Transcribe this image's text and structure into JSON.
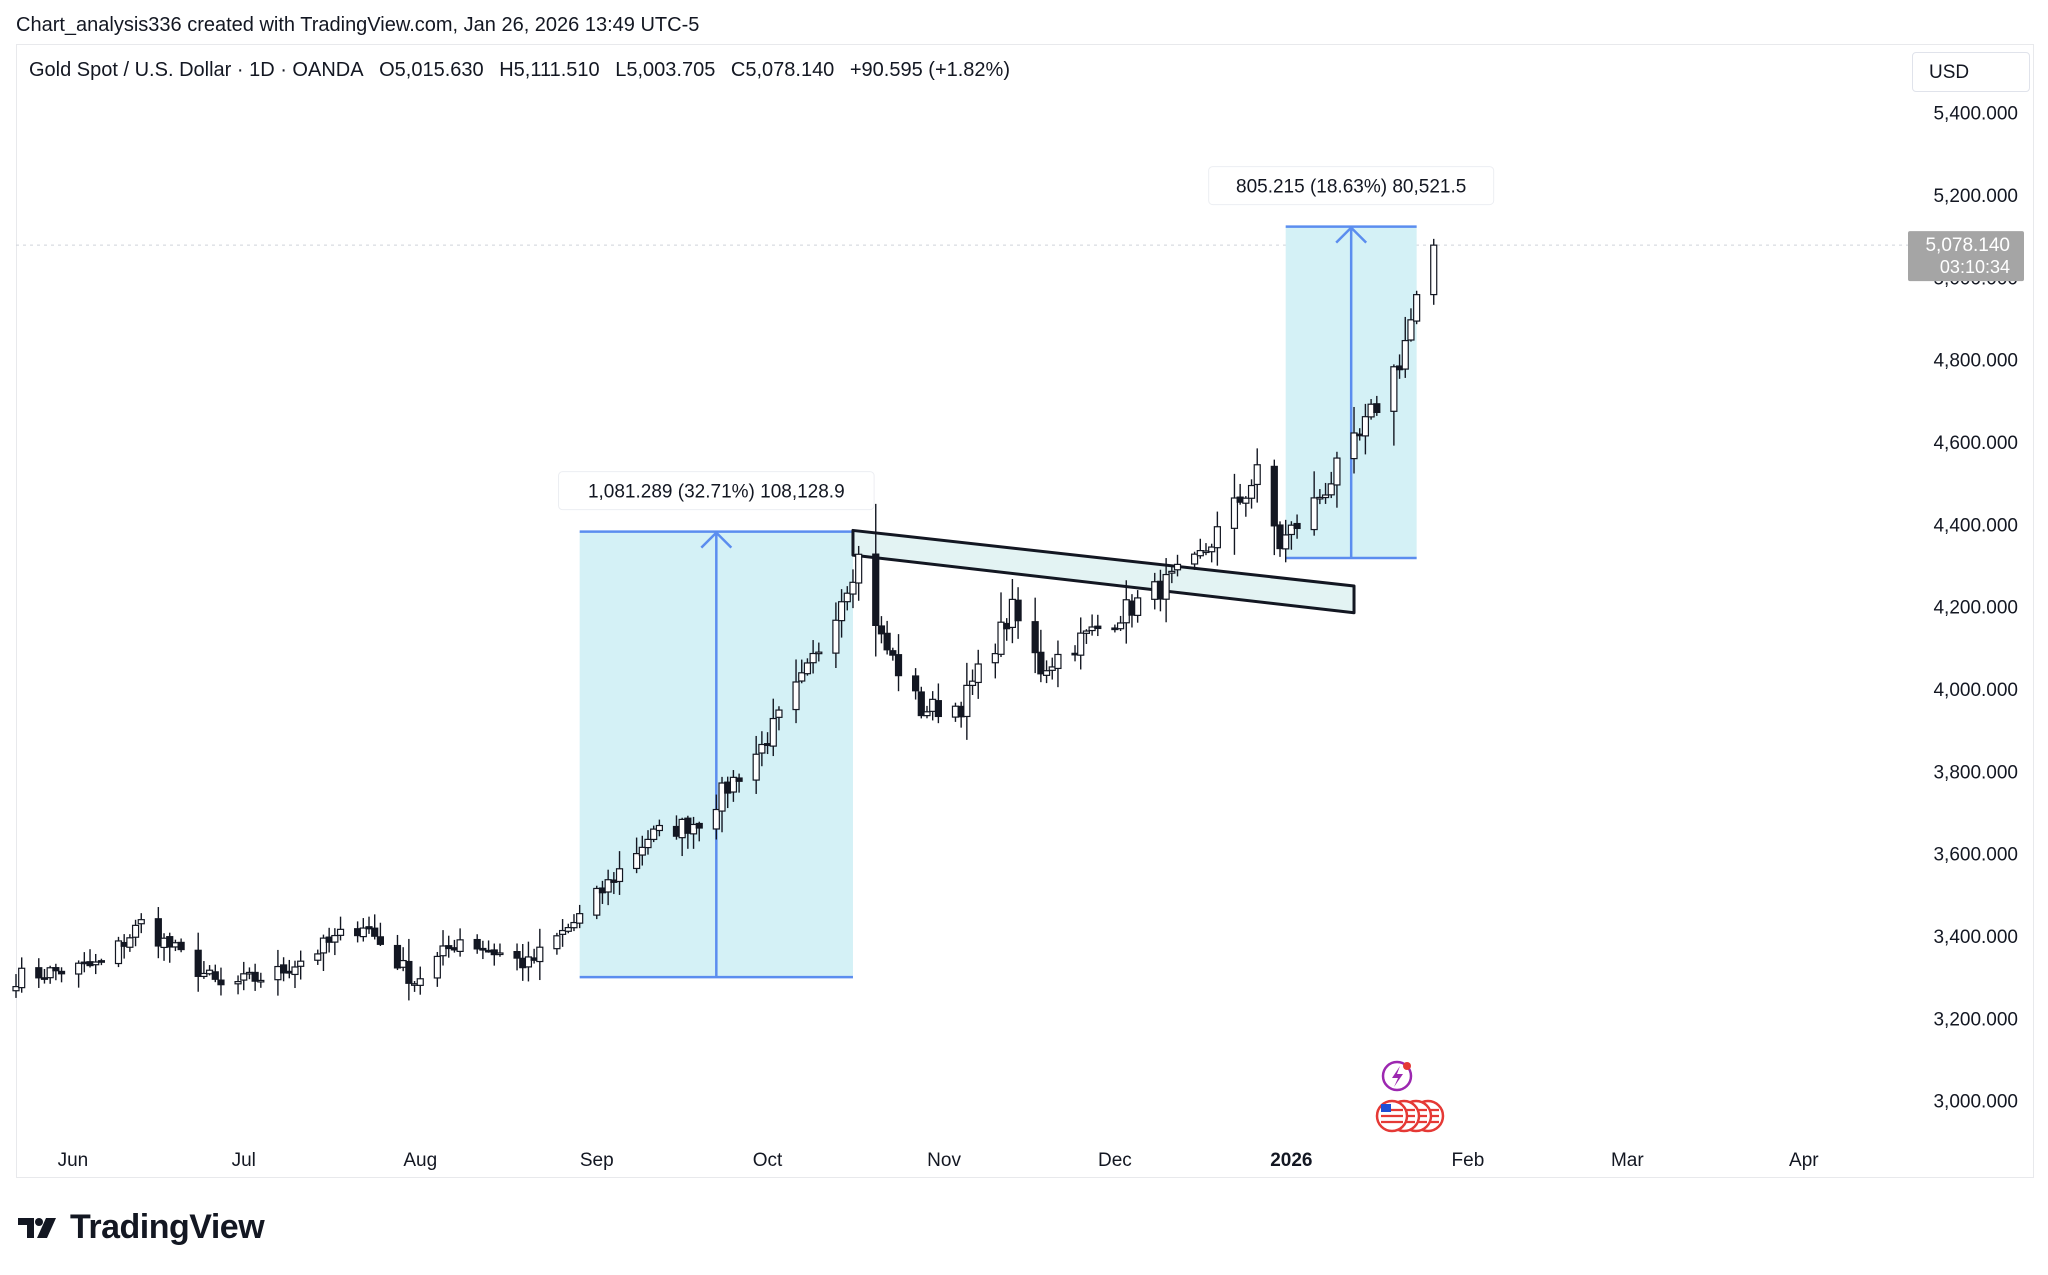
{
  "attribution": "Chart_analysis336 created with TradingView.com, Jan 26, 2026 13:49 UTC-5",
  "legend": {
    "symbol": "Gold Spot / U.S. Dollar · 1D · OANDA",
    "open": "O5,015.630",
    "high": "H5,111.510",
    "low": "L5,003.705",
    "close": "C5,078.140",
    "change": "+90.595 (+1.82%)"
  },
  "currency": "USD",
  "brand": "TradingView",
  "colors": {
    "candle_up_body": "#ffffff",
    "candle_down_body": "#131722",
    "measure_fill": "#d4f1f6",
    "measure_line": "#5b8def",
    "channel_fill": "#e3f3f3",
    "price_label_bg": "#a5a5a5"
  },
  "chart_data": {
    "type": "candlestick",
    "ylim": [
      2880,
      5450
    ],
    "y_ticks": [
      3000,
      3200,
      3400,
      3600,
      3800,
      4000,
      4200,
      4400,
      4600,
      4800,
      5000,
      5200,
      5400
    ],
    "y_tick_labels": [
      "3,000.000",
      "3,200.000",
      "3,400.000",
      "3,600.000",
      "3,800.000",
      "4,000.000",
      "4,200.000",
      "4,400.000",
      "4,600.000",
      "4,800.000",
      "5,000.000",
      "5,200.000",
      "5,400.000"
    ],
    "x_range": [
      "2025-05-22",
      "2026-04-20"
    ],
    "x_ticks": [
      {
        "date": "2025-06-01",
        "label": "Jun",
        "bold": false
      },
      {
        "date": "2025-07-01",
        "label": "Jul",
        "bold": false
      },
      {
        "date": "2025-08-01",
        "label": "Aug",
        "bold": false
      },
      {
        "date": "2025-09-01",
        "label": "Sep",
        "bold": false
      },
      {
        "date": "2025-10-01",
        "label": "Oct",
        "bold": false
      },
      {
        "date": "2025-11-01",
        "label": "Nov",
        "bold": false
      },
      {
        "date": "2025-12-01",
        "label": "Dec",
        "bold": false
      },
      {
        "date": "2026-01-01",
        "label": "2026",
        "bold": true
      },
      {
        "date": "2026-02-01",
        "label": "Feb",
        "bold": false
      },
      {
        "date": "2026-03-01",
        "label": "Mar",
        "bold": false
      },
      {
        "date": "2026-04-01",
        "label": "Apr",
        "bold": false
      }
    ],
    "closes": [
      {
        "date": "2025-05-22",
        "close": 3300
      },
      {
        "date": "2025-06-06",
        "close": 3330
      },
      {
        "date": "2025-06-13",
        "close": 3430
      },
      {
        "date": "2025-06-27",
        "close": 3275
      },
      {
        "date": "2025-07-07",
        "close": 3310
      },
      {
        "date": "2025-07-22",
        "close": 3430
      },
      {
        "date": "2025-07-31",
        "close": 3290
      },
      {
        "date": "2025-08-08",
        "close": 3395
      },
      {
        "date": "2025-08-20",
        "close": 3330
      },
      {
        "date": "2025-08-29",
        "close": 3445
      },
      {
        "date": "2025-09-10",
        "close": 3640
      },
      {
        "date": "2025-09-19",
        "close": 3680
      },
      {
        "date": "2025-09-30",
        "close": 3860
      },
      {
        "date": "2025-10-08",
        "close": 4040
      },
      {
        "date": "2025-10-17",
        "close": 4320
      },
      {
        "date": "2025-10-21",
        "close": 4120
      },
      {
        "date": "2025-10-28",
        "close": 3950
      },
      {
        "date": "2025-11-04",
        "close": 3960
      },
      {
        "date": "2025-11-13",
        "close": 4190
      },
      {
        "date": "2025-11-18",
        "close": 4050
      },
      {
        "date": "2025-11-25",
        "close": 4120
      },
      {
        "date": "2025-12-05",
        "close": 4210
      },
      {
        "date": "2025-12-15",
        "close": 4300
      },
      {
        "date": "2025-12-26",
        "close": 4520
      },
      {
        "date": "2025-12-30",
        "close": 4350
      },
      {
        "date": "2026-01-05",
        "close": 4450
      },
      {
        "date": "2026-01-13",
        "close": 4610
      },
      {
        "date": "2026-01-20",
        "close": 4800
      },
      {
        "date": "2026-01-26",
        "close": 5078
      }
    ],
    "last_price": {
      "label": "5,078.140",
      "countdown": "03:10:34",
      "value": 5078.14
    },
    "annotations": [
      {
        "type": "price_range",
        "label": "1,081.289 (32.71%) 108,128.9",
        "from_date": "2025-08-29",
        "to_date": "2025-10-16",
        "from_price": 3300,
        "to_price": 4382
      },
      {
        "type": "price_range",
        "label": "805.215 (18.63%) 80,521.5",
        "from_date": "2025-12-31",
        "to_date": "2026-01-23",
        "from_price": 4318,
        "to_price": 5123
      },
      {
        "type": "channel",
        "start_date": "2025-10-16",
        "end_date": "2026-01-12",
        "top_start": 4385,
        "top_end": 4250,
        "bottom_start": 4325,
        "bottom_end": 4185
      }
    ]
  }
}
